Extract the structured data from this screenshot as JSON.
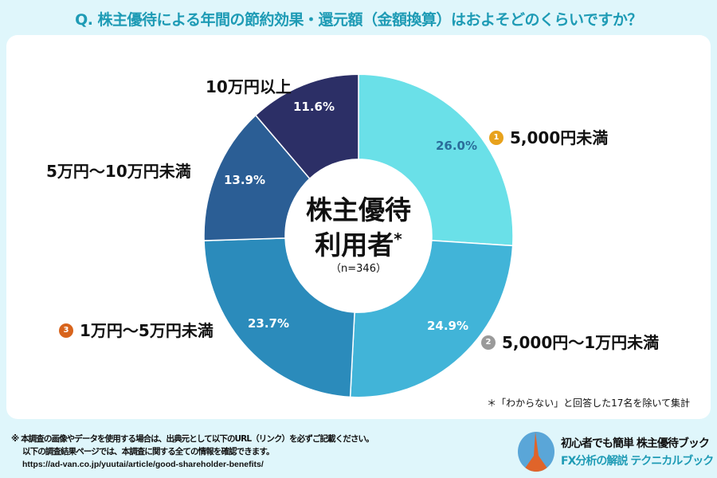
{
  "title": "Q. 株主優待による年間の節約効果・還元額（金額換算）はおよそどのくらいですか？",
  "chart_data": {
    "type": "pie",
    "donut": true,
    "categories": [
      "5,000円未満",
      "5,000円～1万円未満",
      "1万円～5万円未満",
      "5万円～10万円未満",
      "10万円以上"
    ],
    "values": [
      26.0,
      24.9,
      23.7,
      13.9,
      11.6
    ],
    "data_labels": [
      "26.0%",
      "24.9%",
      "23.7%",
      "13.9%",
      "11.6%"
    ],
    "colors": [
      "#6ae0e8",
      "#41b4d8",
      "#2b8bbb",
      "#2b5e95",
      "#2c2f66"
    ],
    "rank_badges": {
      "0": "1",
      "1": "2",
      "2": "3"
    },
    "center_label": "株主優待",
    "center_label2": "利用者",
    "center_asterisk": "*",
    "center_n": "（n=346）"
  },
  "note": "＊「わからない」と回答した17名を除いて集計",
  "footer": {
    "line1": "※ 本調査の画像やデータを使用する場合は、出典元として以下のURL（リンク）を必ずご記載ください。",
    "line2": "以下の調査結果ページでは、本調査に関する全ての情報を確認できます。",
    "url": "https://ad-van.co.jp/yuutai/article/good-shareholder-benefits/"
  },
  "brand": {
    "line1": "初心者でも簡単 株主優待ブック",
    "line2": "FX分析の解説 テクニカルブック"
  }
}
